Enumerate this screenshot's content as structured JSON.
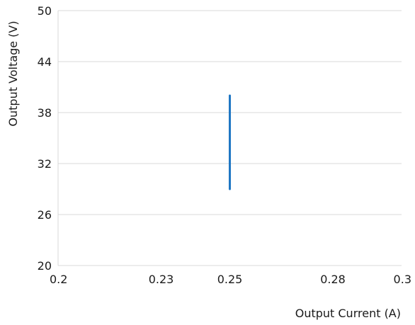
{
  "chart_data": {
    "type": "line",
    "xlabel": "Output Current (A)",
    "ylabel": "Output Voltage (V)",
    "xlim": [
      0.2,
      0.3
    ],
    "ylim": [
      20,
      50
    ],
    "x_ticks": [
      "0.2",
      "0.23",
      "0.25",
      "0.28",
      "0.3"
    ],
    "x_tick_values": [
      0.2,
      0.23,
      0.25,
      0.28,
      0.3
    ],
    "y_ticks": [
      "20",
      "26",
      "32",
      "38",
      "44",
      "50"
    ],
    "y_tick_values": [
      20,
      26,
      32,
      38,
      44,
      50
    ],
    "grid": "horizontal",
    "series": [
      {
        "color": "#1f77c4",
        "points": [
          {
            "x": 0.25,
            "y": 29
          },
          {
            "x": 0.25,
            "y": 40
          }
        ]
      }
    ]
  }
}
